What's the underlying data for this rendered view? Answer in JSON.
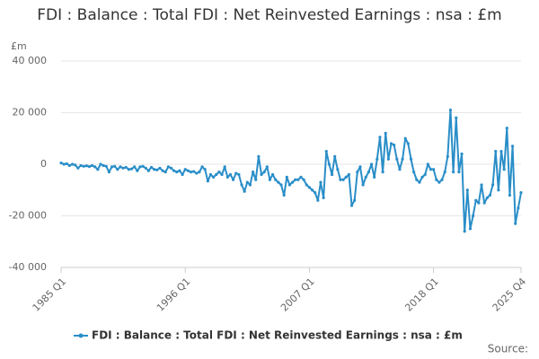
{
  "chart_data": {
    "type": "line",
    "title": "FDI : Balance : Total FDI : Net Reinvested Earnings : nsa : £m",
    "y_label": "£m",
    "source": "Source:",
    "categories": [
      "1985 Q1",
      null,
      null,
      null,
      null,
      null,
      null,
      null,
      null,
      null,
      null,
      null,
      null,
      null,
      null,
      null,
      null,
      null,
      null,
      null,
      null,
      null,
      null,
      null,
      null,
      null,
      null,
      null,
      null,
      null,
      null,
      null,
      null,
      null,
      null,
      null,
      null,
      null,
      null,
      null,
      null,
      null,
      null,
      null,
      "1996 Q1",
      null,
      null,
      null,
      null,
      null,
      null,
      null,
      null,
      null,
      null,
      null,
      null,
      null,
      null,
      null,
      null,
      null,
      null,
      null,
      null,
      null,
      null,
      null,
      null,
      null,
      null,
      null,
      null,
      null,
      null,
      null,
      null,
      null,
      null,
      null,
      null,
      null,
      null,
      null,
      null,
      null,
      null,
      null,
      "2007 Q1",
      null,
      null,
      null,
      null,
      null,
      null,
      null,
      null,
      null,
      null,
      null,
      null,
      null,
      null,
      null,
      null,
      null,
      null,
      null,
      null,
      null,
      null,
      null,
      null,
      null,
      null,
      null,
      null,
      null,
      null,
      null,
      null,
      null,
      null,
      null,
      null,
      null,
      null,
      null,
      null,
      null,
      null,
      null,
      "2018 Q1",
      null,
      null,
      null,
      null,
      null,
      null,
      null,
      null,
      null,
      null,
      null,
      null,
      null,
      null,
      null,
      null,
      null,
      null,
      null,
      null,
      null,
      null,
      null,
      null,
      null,
      null,
      null,
      null,
      null,
      null,
      "2025 Q4"
    ],
    "series": [
      {
        "name": "FDI : Balance : Total FDI : Net Reinvested Earnings : nsa : £m",
        "color": "#2a8ec8",
        "values": [
          500,
          0,
          200,
          -500,
          0,
          -300,
          -1500,
          -500,
          -800,
          -600,
          -900,
          -500,
          -1000,
          -2000,
          0,
          -500,
          -800,
          -3000,
          -1000,
          -800,
          -2000,
          -1000,
          -1500,
          -1200,
          -2000,
          -1800,
          -1000,
          -2500,
          -1000,
          -800,
          -1500,
          -2500,
          -1200,
          -2000,
          -2200,
          -1500,
          -2500,
          -3000,
          -1000,
          -1500,
          -2500,
          -3000,
          -2500,
          -4000,
          -2000,
          -2500,
          -3000,
          -2800,
          -3500,
          -3000,
          -1000,
          -2000,
          -6500,
          -4000,
          -5000,
          -4000,
          -3000,
          -4000,
          -1000,
          -5000,
          -4000,
          -6000,
          -3500,
          -4000,
          -8000,
          -10500,
          -7000,
          -8000,
          -3000,
          -6000,
          3000,
          -4000,
          -3000,
          -1000,
          -6000,
          -4000,
          -6000,
          -7000,
          -8000,
          -12000,
          -5000,
          -8000,
          -7000,
          -6000,
          -6000,
          -5000,
          -6000,
          -8000,
          -9000,
          -10000,
          -11000,
          -14000,
          -7000,
          -13000,
          5000,
          0,
          -4000,
          3000,
          -2000,
          -6000,
          -6000,
          -5000,
          -4000,
          -16000,
          -14000,
          -3000,
          -1000,
          -8000,
          -5000,
          -3000,
          0,
          -5000,
          2000,
          10500,
          -3000,
          12000,
          2000,
          8000,
          7500,
          2000,
          -2000,
          2000,
          10000,
          8000,
          2000,
          -3000,
          -6000,
          -7000,
          -5000,
          -4000,
          0,
          -2000,
          -2000,
          -6000,
          -7000,
          -6000,
          -3000,
          3000,
          21000,
          -3000,
          18000,
          -3000,
          4000,
          -26000,
          -10000,
          -25000,
          -20000,
          -14000,
          -15000,
          -8000,
          -15000,
          -13000,
          -12000,
          -8000,
          5000,
          -10000,
          5000,
          -2000,
          14000,
          -12000,
          7000,
          -23000,
          -17000,
          -11000
        ]
      }
    ],
    "ylim": [
      -40000,
      40000
    ],
    "yticks": [
      {
        "value": -40000,
        "label": "-40 000"
      },
      {
        "value": -20000,
        "label": "-20 000"
      },
      0,
      {
        "value": 20000,
        "label": "20 000"
      },
      {
        "value": 40000,
        "label": "40 000"
      }
    ],
    "grid": true
  }
}
